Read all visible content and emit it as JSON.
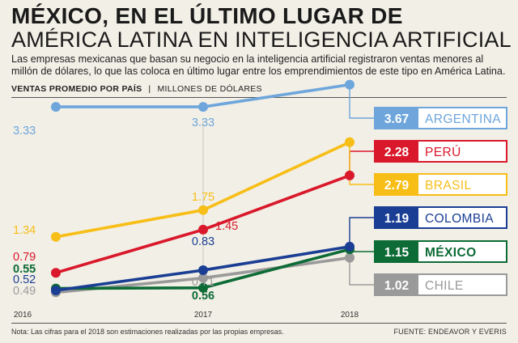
{
  "headline": {
    "line1": "MÉXICO, EN EL ÚLTIMO LUGAR DE",
    "line2": "AMÉRICA LATINA EN INTELIGENCIA ARTIFICIAL"
  },
  "subtitle": "Las empresas mexicanas que basan su negocio en la inteligencia artificial registraron ventas menores al millón de dólares, lo que las coloca en último lugar entre los emprendimientos de este tipo en América Latina.",
  "chart_header": {
    "label": "VENTAS PROMEDIO POR PAÍS",
    "separator": "|",
    "units": "MILLONES DE DÓLARES"
  },
  "footnote": "Nota: Las cifras para el 2018 son estimaciones realizadas por las propias empresas.",
  "source": "FUENTE: ENDEAVOR Y EVERIS",
  "chart_data": {
    "type": "line",
    "x": [
      "2016",
      "2017",
      "2018"
    ],
    "ylim": [
      0,
      4
    ],
    "grid": false,
    "legend_placement": "right",
    "series": [
      {
        "name": "ARGENTINA",
        "values": [
          3.33,
          3.33,
          3.67
        ],
        "color": "#6ea6dc",
        "labels": [
          "3.33",
          "3.33",
          "3.67"
        ]
      },
      {
        "name": "PERÚ",
        "values": [
          0.79,
          1.45,
          2.28
        ],
        "color": "#d9182b",
        "labels": [
          "0.79",
          "1.45",
          "2.28"
        ]
      },
      {
        "name": "BRASIL",
        "values": [
          1.34,
          1.75,
          2.79
        ],
        "color": "#f7be17",
        "labels": [
          "1.34",
          "1.75",
          "2.79"
        ]
      },
      {
        "name": "COLOMBIA",
        "values": [
          0.52,
          0.83,
          1.19
        ],
        "color": "#1a3e94",
        "labels": [
          "0.52",
          "0.83",
          "1.19"
        ]
      },
      {
        "name": "MÉXICO",
        "values": [
          0.55,
          0.56,
          1.15
        ],
        "color": "#0d6b36",
        "labels": [
          "0.55",
          "0.56",
          "1.15"
        ]
      },
      {
        "name": "CHILE",
        "values": [
          0.49,
          0.71,
          1.02
        ],
        "color": "#9a9a9a",
        "labels": [
          "0.49",
          "0.71",
          "1.02"
        ]
      }
    ]
  }
}
